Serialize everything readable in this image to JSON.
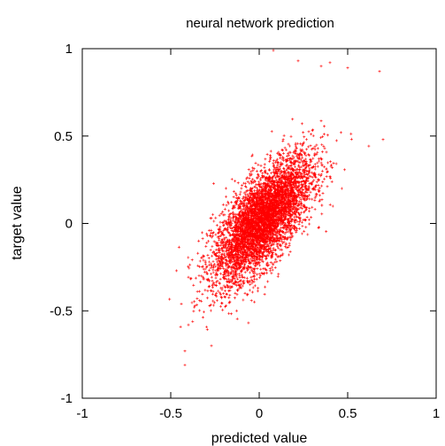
{
  "chart_data": {
    "type": "scatter",
    "title": "neural network prediction",
    "xlabel": "predicted value",
    "ylabel": "target value",
    "xlim": [
      -1,
      1
    ],
    "ylim": [
      -1,
      1
    ],
    "xticks": [
      -1,
      -0.5,
      0,
      0.5,
      1
    ],
    "yticks": [
      -1,
      -0.5,
      0,
      0.5,
      1
    ],
    "xtick_labels": [
      "-1",
      "-0.5",
      "0",
      "0.5",
      "1"
    ],
    "ytick_labels": [
      "-1",
      "-0.5",
      "0",
      "0.5",
      "1"
    ],
    "grid": false,
    "legend": "none",
    "marker": "+",
    "series": [
      {
        "color": "#ff0000",
        "n_points": 5000,
        "cluster_center": [
          0.02,
          0.02
        ],
        "correlation": 0.7,
        "x_std": 0.14,
        "y_std": 0.18,
        "notable_points": [
          [
            0.08,
            0.99
          ],
          [
            0.22,
            0.93
          ],
          [
            0.35,
            0.9
          ],
          [
            0.4,
            0.92
          ],
          [
            0.5,
            0.89
          ],
          [
            0.68,
            0.87
          ],
          [
            0.7,
            0.48
          ],
          [
            -0.44,
            -0.46
          ],
          [
            -0.42,
            -0.73
          ],
          [
            -0.42,
            -0.81
          ],
          [
            -0.27,
            -0.7
          ],
          [
            -0.4,
            -0.58
          ]
        ]
      }
    ]
  }
}
